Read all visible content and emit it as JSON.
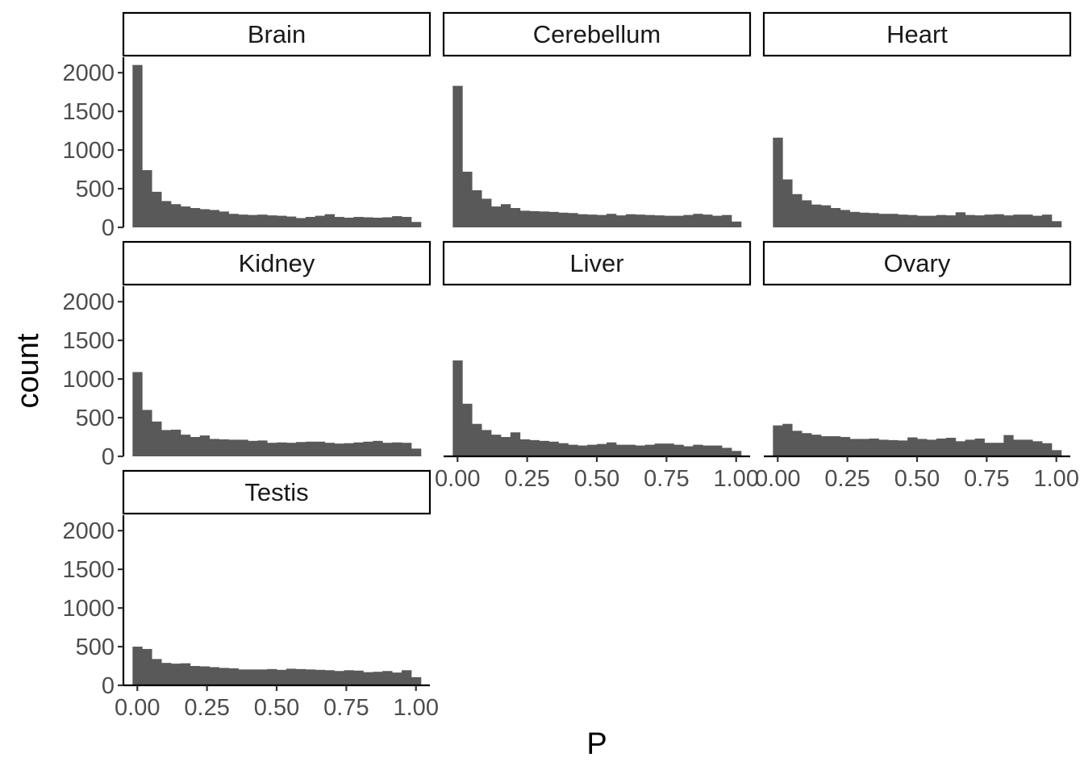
{
  "chart_data": {
    "type": "bar",
    "subtype": "histogram-faceted",
    "xlabel": "P",
    "ylabel": "count",
    "ylim": [
      0,
      2200
    ],
    "xlim": [
      -0.05,
      1.05
    ],
    "y_ticks": [
      0,
      500,
      1000,
      1500,
      2000
    ],
    "y_tick_labels": [
      "0",
      "500",
      "1000",
      "1500",
      "2000"
    ],
    "x_ticks": [
      0,
      0.25,
      0.5,
      0.75,
      1
    ],
    "x_tick_labels": [
      "0.00",
      "0.25",
      "0.50",
      "0.75",
      "1.00"
    ],
    "bin_width": 0.0345,
    "bin_start": -0.0172,
    "bar_color": "#595959",
    "grid": false,
    "facet_columns": 3,
    "facets": [
      {
        "name": "Brain",
        "values": [
          2100,
          740,
          460,
          340,
          300,
          270,
          250,
          235,
          225,
          205,
          175,
          165,
          160,
          165,
          155,
          150,
          140,
          120,
          135,
          150,
          170,
          135,
          125,
          135,
          130,
          125,
          130,
          145,
          135,
          70
        ]
      },
      {
        "name": "Cerebellum",
        "values": [
          1830,
          720,
          480,
          370,
          270,
          300,
          250,
          215,
          210,
          205,
          200,
          190,
          185,
          170,
          165,
          160,
          175,
          155,
          170,
          165,
          160,
          155,
          150,
          150,
          160,
          175,
          165,
          150,
          160,
          75
        ]
      },
      {
        "name": "Heart",
        "values": [
          1160,
          620,
          430,
          350,
          295,
          285,
          250,
          225,
          200,
          190,
          185,
          175,
          175,
          165,
          160,
          150,
          150,
          160,
          155,
          195,
          160,
          155,
          165,
          170,
          155,
          165,
          165,
          150,
          165,
          80
        ]
      },
      {
        "name": "Kidney",
        "values": [
          1090,
          600,
          450,
          340,
          345,
          280,
          250,
          270,
          225,
          220,
          215,
          215,
          200,
          205,
          175,
          180,
          175,
          185,
          190,
          190,
          175,
          165,
          170,
          180,
          190,
          200,
          175,
          180,
          175,
          100
        ]
      },
      {
        "name": "Liver",
        "values": [
          1240,
          680,
          420,
          340,
          280,
          250,
          310,
          220,
          210,
          200,
          190,
          170,
          150,
          140,
          150,
          160,
          180,
          150,
          150,
          140,
          150,
          165,
          165,
          150,
          130,
          150,
          140,
          140,
          110,
          70
        ]
      },
      {
        "name": "Ovary",
        "values": [
          400,
          420,
          330,
          300,
          280,
          260,
          260,
          250,
          225,
          225,
          230,
          215,
          210,
          205,
          245,
          225,
          215,
          230,
          240,
          195,
          215,
          230,
          175,
          175,
          275,
          215,
          215,
          195,
          170,
          80
        ]
      },
      {
        "name": "Testis",
        "values": [
          500,
          470,
          340,
          290,
          280,
          285,
          250,
          245,
          235,
          225,
          220,
          205,
          205,
          205,
          210,
          200,
          215,
          210,
          205,
          200,
          195,
          185,
          195,
          190,
          170,
          175,
          185,
          165,
          195,
          105
        ]
      }
    ]
  }
}
